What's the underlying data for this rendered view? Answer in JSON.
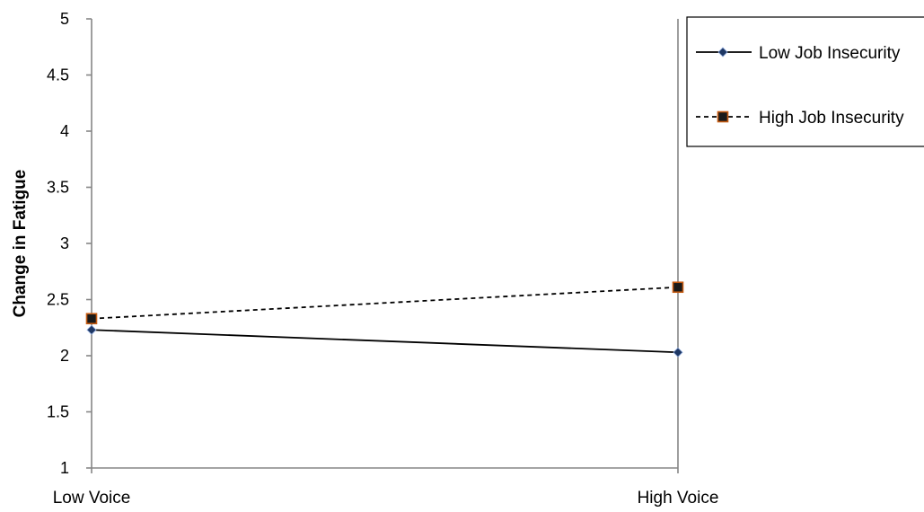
{
  "chart_data": {
    "type": "line",
    "title": "",
    "xlabel": "",
    "ylabel": "Change in Fatigue",
    "categories": [
      "Low Voice",
      "High Voice"
    ],
    "ylim": [
      1,
      5
    ],
    "yticks": [
      "1",
      "1.5",
      "2",
      "2.5",
      "3",
      "3.5",
      "4",
      "4.5",
      "5"
    ],
    "grid": false,
    "legend_position": "right",
    "series": [
      {
        "name": "Low Job Insecurity",
        "values": [
          2.23,
          2.03
        ],
        "line_style": "solid",
        "marker": "diamond",
        "line_color": "#000000",
        "marker_color": "#1f3864"
      },
      {
        "name": "High Job Insecurity",
        "values": [
          2.33,
          2.61
        ],
        "line_style": "dashed",
        "marker": "square",
        "line_color": "#000000",
        "marker_color": "#1a1a1a",
        "marker_edge_color": "#c55a11"
      }
    ]
  }
}
